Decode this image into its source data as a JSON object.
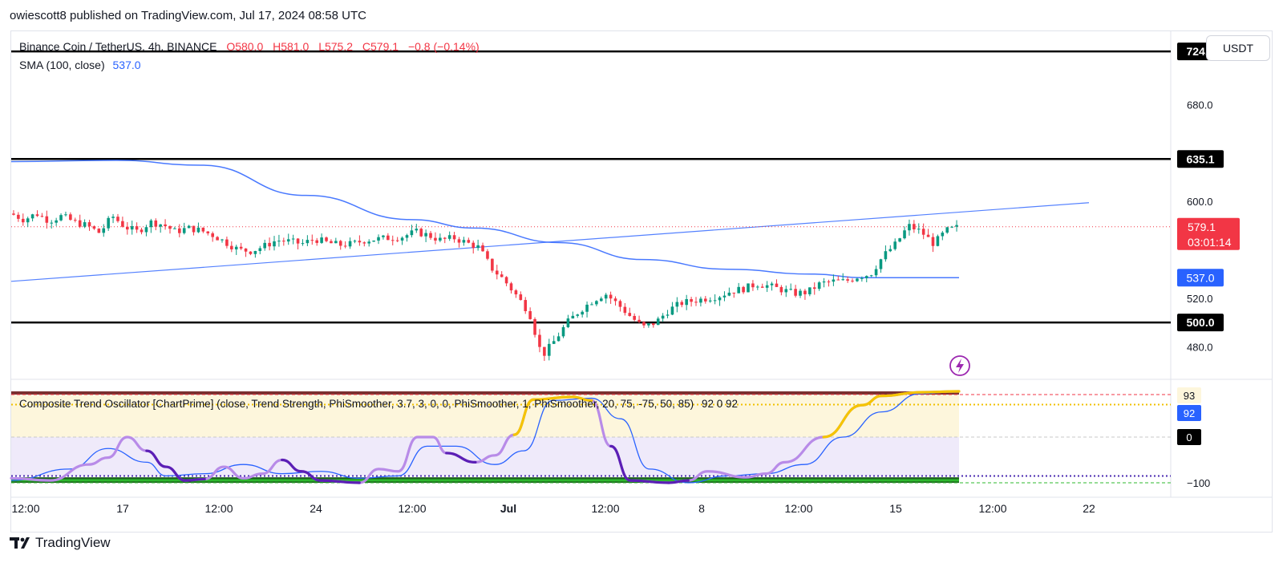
{
  "header": {
    "credit": "owiescott8 published on TradingView.com, Jul 17, 2024 08:58 UTC"
  },
  "legend": {
    "symbol": "Binance Coin / TetherUS, 4h, BINANCE",
    "open": "O580.0",
    "high": "H581.0",
    "low": "L575.2",
    "close": "C579.1",
    "change": "−0.8 (−0.14%)",
    "sma_label": "SMA (100, close)",
    "sma_value": "537.0"
  },
  "currency": "USDT",
  "oscillator": {
    "title": "Composite Trend Oscillator [ChartPrime] (close, Trend Strength, PhiSmoother, 3.7, 3, 0, 0, PhiSmoother, 1, PhiSmoother, 20, 75, -75, 50, 85)",
    "title_values": "92 0 92",
    "axis_labels": [
      "93",
      "92",
      "0",
      "−100"
    ]
  },
  "chart_data": {
    "type": "candlestick",
    "symbol": "BNBUSDT",
    "timeframe": "4h",
    "price_axis": {
      "ylim": [
        455,
        740
      ],
      "ticks": [
        480.0,
        520.0,
        600.0,
        680.0
      ]
    },
    "horizontal_levels": [
      724.0,
      635.1,
      500.0
    ],
    "last_price": 579.1,
    "countdown": "03:01:14",
    "sma_last": 537.0,
    "x_axis": {
      "tick_labels": [
        "12:00",
        "17",
        "12:00",
        "24",
        "12:00",
        "Jul",
        "12:00",
        "8",
        "12:00",
        "15",
        "12:00",
        "22"
      ]
    },
    "trend_line": {
      "start_price": 534,
      "end_price": 599
    },
    "price_path": [
      [
        0,
        590
      ],
      [
        0.6,
        585
      ],
      [
        1.2,
        590
      ],
      [
        1.8,
        584
      ],
      [
        2.4,
        588
      ],
      [
        3.0,
        583
      ],
      [
        3.6,
        580
      ],
      [
        4.2,
        574
      ],
      [
        4.8,
        588
      ],
      [
        5.4,
        579
      ],
      [
        6.0,
        575
      ],
      [
        6.6,
        583
      ],
      [
        7.2,
        581
      ],
      [
        7.8,
        575
      ],
      [
        8.4,
        578
      ],
      [
        9.0,
        576
      ],
      [
        9.6,
        572
      ],
      [
        10.2,
        566
      ],
      [
        10.8,
        560
      ],
      [
        11.4,
        559
      ],
      [
        12.0,
        563
      ],
      [
        12.6,
        568
      ],
      [
        13.2,
        567
      ],
      [
        13.8,
        565
      ],
      [
        14.4,
        569
      ],
      [
        15.0,
        566
      ],
      [
        15.6,
        564
      ],
      [
        16.2,
        565
      ],
      [
        16.8,
        568
      ],
      [
        17.4,
        569
      ],
      [
        18.0,
        570
      ],
      [
        18.6,
        571
      ],
      [
        19.2,
        575
      ],
      [
        19.8,
        572
      ],
      [
        20.4,
        568
      ],
      [
        21.0,
        570
      ],
      [
        21.6,
        566
      ],
      [
        22.2,
        562
      ],
      [
        22.8,
        545
      ],
      [
        23.4,
        535
      ],
      [
        24.0,
        522
      ],
      [
        24.6,
        508
      ],
      [
        25.2,
        472
      ],
      [
        25.8,
        485
      ],
      [
        26.4,
        500
      ],
      [
        27.0,
        510
      ],
      [
        27.6,
        518
      ],
      [
        28.2,
        524
      ],
      [
        28.8,
        515
      ],
      [
        29.4,
        505
      ],
      [
        30.0,
        496
      ],
      [
        30.6,
        500
      ],
      [
        31.2,
        510
      ],
      [
        31.8,
        516
      ],
      [
        32.4,
        518
      ],
      [
        33.0,
        520
      ],
      [
        33.6,
        522
      ],
      [
        34.2,
        526
      ],
      [
        34.8,
        528
      ],
      [
        35.4,
        532
      ],
      [
        36.0,
        530
      ],
      [
        36.6,
        527
      ],
      [
        37.2,
        524
      ],
      [
        37.8,
        525
      ],
      [
        38.4,
        532
      ],
      [
        39.0,
        534
      ],
      [
        39.6,
        534
      ],
      [
        40.2,
        538
      ],
      [
        40.8,
        540
      ],
      [
        41.4,
        555
      ],
      [
        42.0,
        565
      ],
      [
        42.6,
        580
      ],
      [
        43.2,
        575
      ],
      [
        43.8,
        565
      ],
      [
        44.4,
        576
      ],
      [
        45.0,
        579
      ]
    ],
    "sma_path": [
      [
        0,
        633
      ],
      [
        5.0,
        634
      ],
      [
        9.0,
        630
      ],
      [
        14.0,
        605
      ],
      [
        19.0,
        585
      ],
      [
        22.0,
        578
      ],
      [
        26.0,
        566
      ],
      [
        30.0,
        552
      ],
      [
        34.0,
        544
      ],
      [
        38.0,
        540
      ],
      [
        40.5,
        537
      ],
      [
        41.0,
        537
      ],
      [
        45.0,
        537
      ]
    ],
    "oscillator_axis": {
      "ylim": [
        -100,
        100
      ],
      "ticks": [
        93,
        92,
        0,
        -100
      ]
    }
  }
}
